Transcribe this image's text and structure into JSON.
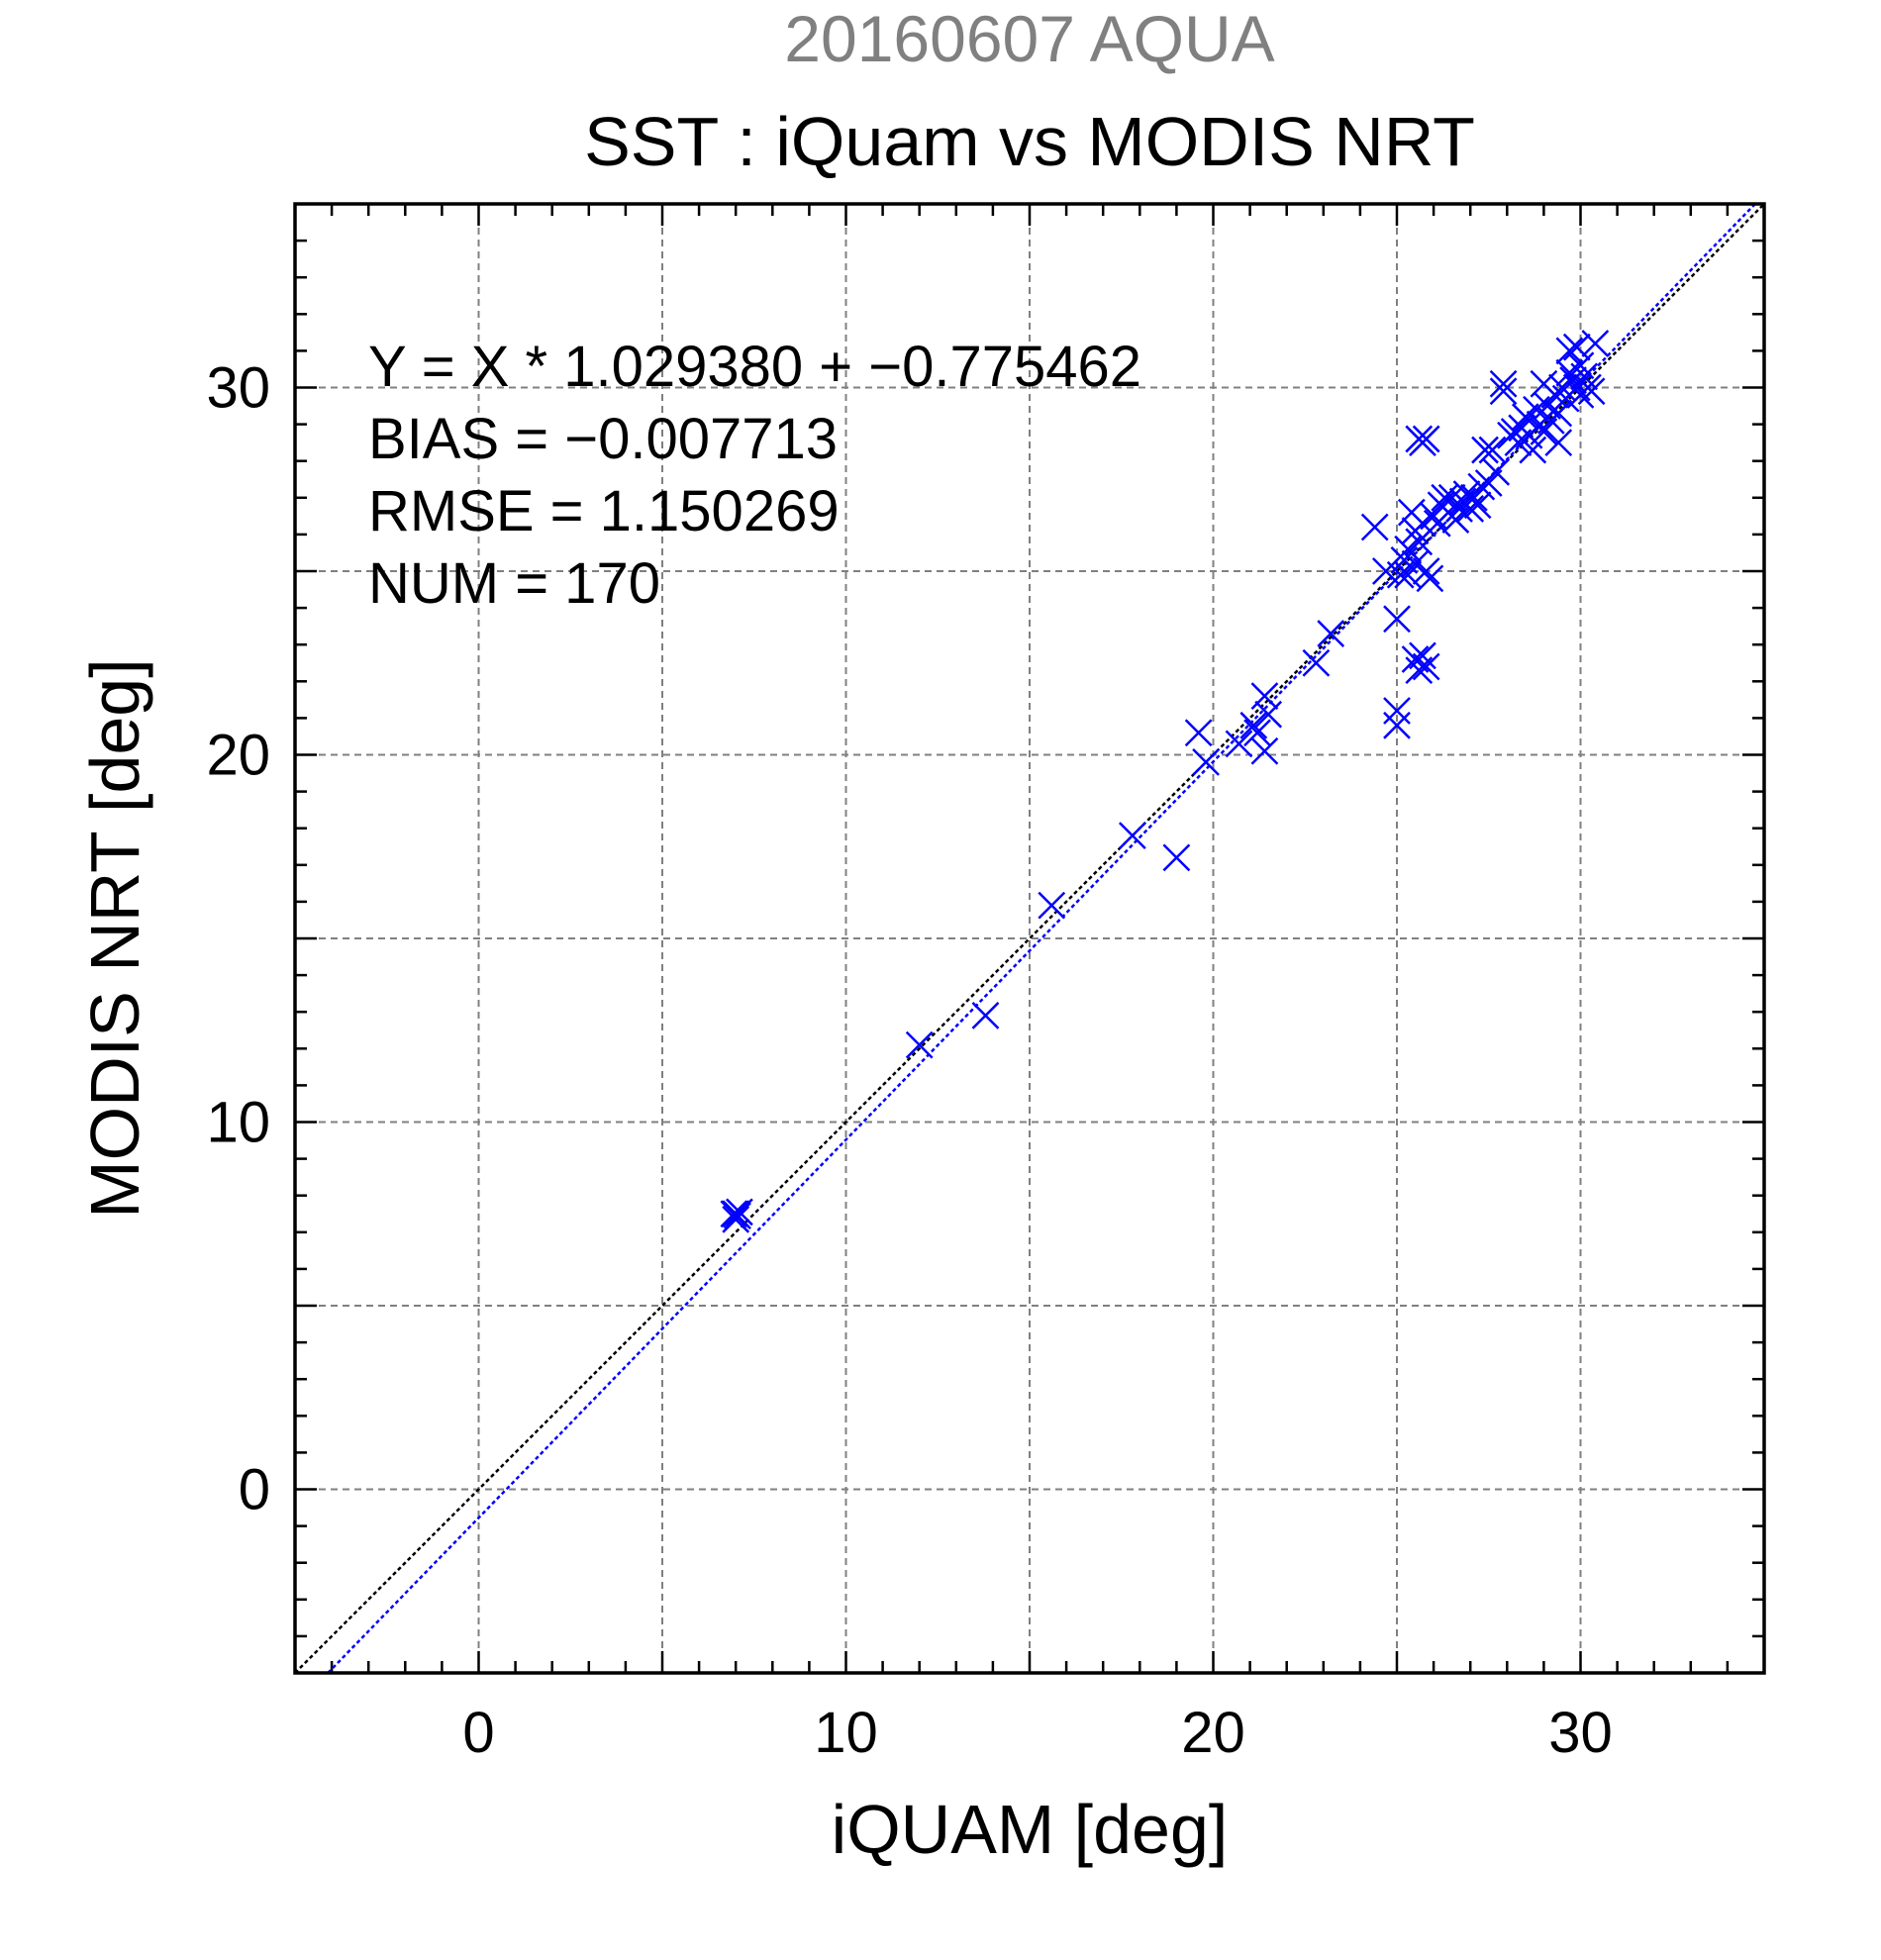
{
  "chart_data": {
    "type": "scatter",
    "supertitle": "20160607 AQUA",
    "title": "SST : iQuam vs MODIS NRT",
    "xlabel": "iQUAM [deg]",
    "ylabel": "MODIS NRT [deg]",
    "xlim": [
      -5,
      35
    ],
    "ylim": [
      -5,
      35
    ],
    "xticks": [
      0,
      10,
      20,
      30
    ],
    "yticks": [
      0,
      10,
      20,
      30
    ],
    "grid": true,
    "grid_step": 5,
    "minor_step": 1,
    "stats": [
      "Y = X * 1.029380 + −0.775462",
      "BIAS = −0.007713",
      "RMSE = 1.150269",
      "NUM = 170"
    ],
    "lines": [
      {
        "role": "1:1 line",
        "slope": 1,
        "intercept": 0,
        "color": "#000000"
      },
      {
        "role": "regression fit",
        "slope": 1.02938,
        "intercept": -0.775462,
        "color": "#0000ff"
      }
    ],
    "marker_color": "#0000ff",
    "axis_color": "#000000",
    "grid_color": "#808080",
    "supertitle_color": "#808080",
    "series": [
      {
        "marker": "x",
        "points": [
          [
            7.0,
            7.5
          ],
          [
            7.05,
            7.45
          ],
          [
            7.1,
            7.55
          ],
          [
            7.0,
            7.35
          ],
          [
            6.95,
            7.5
          ],
          [
            12.0,
            12.1
          ],
          [
            13.8,
            12.9
          ],
          [
            15.6,
            15.9
          ],
          [
            17.8,
            17.8
          ],
          [
            19.0,
            17.2
          ],
          [
            19.6,
            20.6
          ],
          [
            19.8,
            19.8
          ],
          [
            20.7,
            20.3
          ],
          [
            21.1,
            20.8
          ],
          [
            21.2,
            20.6
          ],
          [
            21.4,
            21.6
          ],
          [
            21.5,
            21.1
          ],
          [
            21.4,
            20.1
          ],
          [
            22.8,
            22.5
          ],
          [
            23.2,
            23.3
          ],
          [
            24.4,
            26.2
          ],
          [
            24.7,
            25.0
          ],
          [
            25.0,
            23.7
          ],
          [
            25.0,
            21.2
          ],
          [
            25.0,
            20.8
          ],
          [
            25.2,
            25.3
          ],
          [
            25.1,
            24.9
          ],
          [
            25.3,
            25.6
          ],
          [
            25.4,
            26.6
          ],
          [
            25.5,
            25.2
          ],
          [
            25.3,
            24.9
          ],
          [
            25.5,
            26.1
          ],
          [
            25.6,
            25.8
          ],
          [
            25.7,
            26.3
          ],
          [
            25.5,
            22.6
          ],
          [
            25.6,
            22.3
          ],
          [
            25.7,
            22.7
          ],
          [
            25.8,
            22.4
          ],
          [
            25.6,
            28.6
          ],
          [
            25.8,
            28.6
          ],
          [
            25.7,
            28.5
          ],
          [
            25.9,
            24.8
          ],
          [
            25.8,
            25.0
          ],
          [
            26.0,
            26.5
          ],
          [
            26.1,
            26.3
          ],
          [
            26.2,
            26.8
          ],
          [
            26.3,
            27.0
          ],
          [
            26.4,
            26.6
          ],
          [
            26.5,
            27.0
          ],
          [
            26.6,
            26.4
          ],
          [
            26.7,
            26.7
          ],
          [
            26.8,
            26.9
          ],
          [
            26.9,
            27.1
          ],
          [
            27.0,
            26.7
          ],
          [
            27.1,
            27.0
          ],
          [
            27.2,
            26.8
          ],
          [
            27.3,
            27.3
          ],
          [
            27.4,
            28.3
          ],
          [
            27.5,
            27.4
          ],
          [
            27.6,
            28.3
          ],
          [
            27.7,
            27.7
          ],
          [
            27.9,
            29.9
          ],
          [
            27.9,
            30.1
          ],
          [
            28.1,
            28.7
          ],
          [
            28.2,
            28.8
          ],
          [
            28.3,
            28.5
          ],
          [
            28.4,
            28.9
          ],
          [
            28.5,
            29.2
          ],
          [
            28.6,
            28.7
          ],
          [
            28.7,
            28.3
          ],
          [
            28.8,
            29.4
          ],
          [
            28.9,
            29.0
          ],
          [
            29.0,
            30.1
          ],
          [
            29.0,
            28.8
          ],
          [
            29.1,
            29.5
          ],
          [
            29.2,
            29.1
          ],
          [
            29.3,
            29.8
          ],
          [
            29.4,
            29.3
          ],
          [
            29.4,
            28.5
          ],
          [
            29.5,
            30.0
          ],
          [
            29.6,
            29.7
          ],
          [
            29.7,
            30.4
          ],
          [
            29.7,
            31.0
          ],
          [
            29.8,
            30.2
          ],
          [
            29.9,
            30.0
          ],
          [
            29.9,
            31.1
          ],
          [
            30.0,
            29.8
          ],
          [
            30.0,
            30.6
          ],
          [
            30.1,
            30.3
          ],
          [
            30.2,
            30.0
          ],
          [
            30.3,
            29.9
          ],
          [
            30.4,
            31.2
          ]
        ]
      }
    ]
  }
}
